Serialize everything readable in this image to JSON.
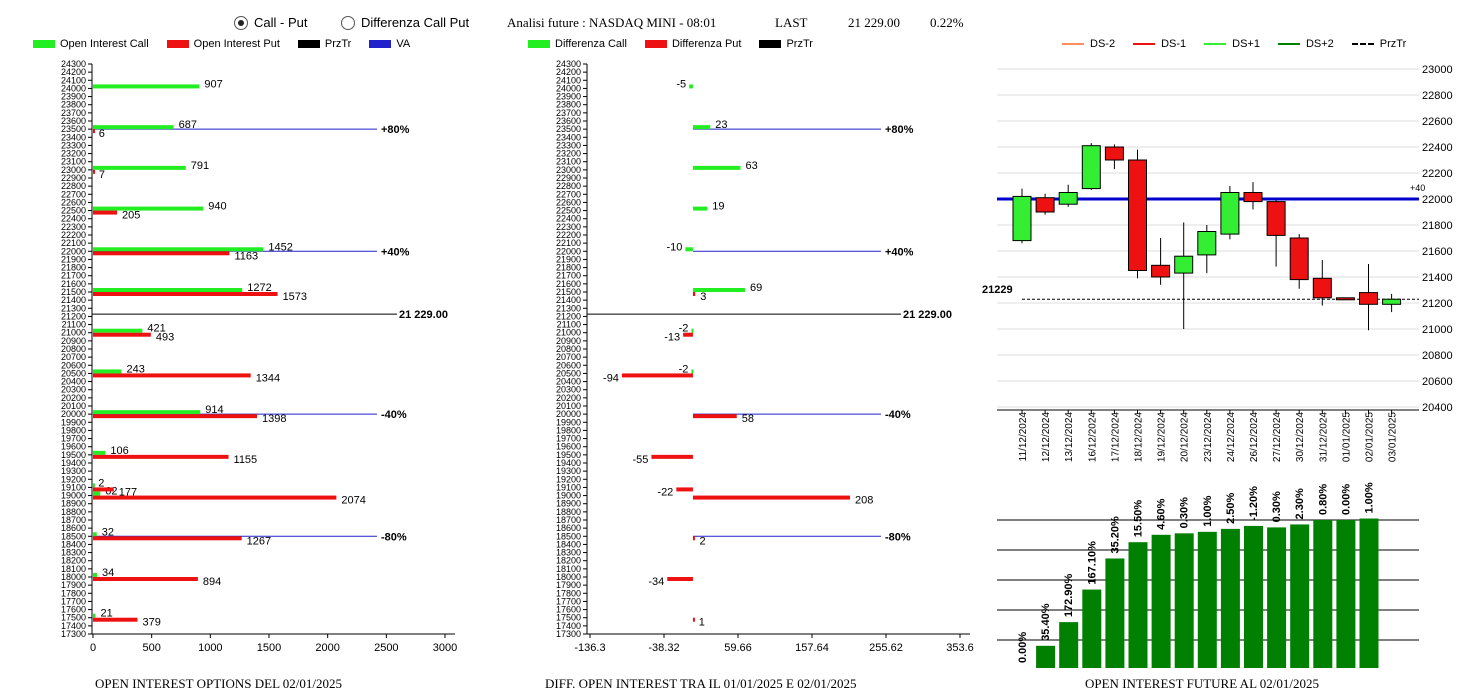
{
  "header": {
    "radio_call_put": "Call - Put",
    "radio_diff": "Differenza Call Put",
    "title": "Analisi future : NASDAQ MINI - 08:01",
    "last_label": "LAST",
    "last_value": "21 229.00",
    "last_change": "0.22%"
  },
  "legend1": {
    "call": "Open Interest Call",
    "put": "Open Interest Put",
    "prz": "PrzTr",
    "va": "VA"
  },
  "legend2": {
    "call": "Differenza Call",
    "put": "Differenza Put",
    "prz": "PrzTr"
  },
  "legend3": {
    "ds_2": "DS-2",
    "ds_1": "DS-1",
    "ds1": "DS+1",
    "ds2": "DS+2",
    "prz": "PrzTr"
  },
  "colors": {
    "call": "#22ee22",
    "put": "#ee1111",
    "va": "#2222cc",
    "candle_up": "#33ee33",
    "candle_down": "#ee1111",
    "bar": "#008000",
    "level": "#0000cc",
    "ds_2": "#ff8c5a",
    "ds_1": "#ee1111",
    "ds1": "#33ee33",
    "ds2": "#008000"
  },
  "footer": {
    "f1": "OPEN INTEREST OPTIONS DEL 02/01/2025",
    "f2": "DIFF. OPEN INTEREST TRA IL 01/01/2025 E 02/01/2025",
    "f3": "OPEN INTEREST FUTURE AL 02/01/2025"
  },
  "chart_data": [
    {
      "type": "bar",
      "orientation": "horizontal",
      "ylim": [
        17300,
        24300
      ],
      "xlim": [
        0,
        3000
      ],
      "xticks": [
        "0",
        "500",
        "1000",
        "1500",
        "2000",
        "2500",
        "3000"
      ],
      "strikes": [
        17500,
        18000,
        18500,
        19000,
        19100,
        19500,
        20000,
        20500,
        21000,
        21500,
        22000,
        22500,
        23000,
        23500,
        24000
      ],
      "series": [
        {
          "name": "Open Interest Call",
          "values": [
            21,
            34,
            32,
            62,
            2,
            106,
            914,
            243,
            421,
            1272,
            1452,
            940,
            791,
            687,
            907
          ]
        },
        {
          "name": "Open Interest Put",
          "values": [
            379,
            894,
            1267,
            2074,
            177,
            1155,
            1398,
            1344,
            493,
            1573,
            1163,
            205,
            7,
            6,
            null
          ]
        }
      ],
      "levels": [
        {
          "value": 23500,
          "label": "+80%"
        },
        {
          "value": 22000,
          "label": "+40%"
        },
        {
          "value": 20000,
          "label": "-40%"
        },
        {
          "value": 18500,
          "label": "-80%"
        }
      ],
      "last": {
        "value": 21229,
        "label": "21 229.00"
      }
    },
    {
      "type": "bar",
      "orientation": "horizontal",
      "ylim": [
        17300,
        24300
      ],
      "xlim": [
        -136.3,
        353.6
      ],
      "xticks": [
        "-136.3",
        "-38.32",
        "59.66",
        "157.64",
        "255.62",
        "353.6"
      ],
      "strikes": [
        17500,
        18000,
        18500,
        19000,
        19100,
        19500,
        20000,
        20500,
        21000,
        21500,
        22000,
        22500,
        23000,
        23500,
        24000
      ],
      "series": [
        {
          "name": "Differenza Call",
          "values": [
            null,
            null,
            null,
            null,
            null,
            null,
            null,
            -2,
            -2,
            69,
            -10,
            19,
            63,
            23,
            -5
          ]
        },
        {
          "name": "Differenza Put",
          "values": [
            1,
            -34,
            2,
            208,
            -22,
            -55,
            58,
            -94,
            -13,
            3,
            null,
            null,
            null,
            null,
            null
          ]
        }
      ],
      "levels": [
        {
          "value": 23500,
          "label": "+80%"
        },
        {
          "value": 22000,
          "label": "+40%"
        },
        {
          "value": 20000,
          "label": "-40%"
        },
        {
          "value": 18500,
          "label": "-80%"
        }
      ],
      "last": {
        "value": 21229,
        "label": "21 229.00"
      }
    },
    {
      "type": "candlestick",
      "ylim": [
        20400,
        23000
      ],
      "yticks": [
        "20400",
        "20600",
        "20800",
        "21000",
        "21200",
        "21400",
        "21600",
        "21800",
        "22000",
        "22200",
        "22400",
        "22600",
        "22800",
        "23000"
      ],
      "dates": [
        "11/12/2024",
        "12/12/2024",
        "13/12/2024",
        "16/12/2024",
        "17/12/2024",
        "18/12/2024",
        "19/12/2024",
        "20/12/2024",
        "23/12/2024",
        "24/12/2024",
        "26/12/2024",
        "27/12/2024",
        "30/12/2024",
        "31/12/2024",
        "01/01/2025",
        "02/01/2025",
        "03/01/2025"
      ],
      "ohlc": [
        [
          21680,
          22080,
          21660,
          22020
        ],
        [
          22010,
          22040,
          21880,
          21900
        ],
        [
          21960,
          22110,
          21940,
          22050
        ],
        [
          22080,
          22430,
          22070,
          22410
        ],
        [
          22400,
          22420,
          22230,
          22300
        ],
        [
          22300,
          22380,
          21390,
          21450
        ],
        [
          21490,
          21700,
          21340,
          21400
        ],
        [
          21430,
          21820,
          21000,
          21560
        ],
        [
          21570,
          21800,
          21430,
          21750
        ],
        [
          21730,
          22100,
          21690,
          22050
        ],
        [
          22050,
          22130,
          21920,
          21980
        ],
        [
          21980,
          21990,
          21480,
          21720
        ],
        [
          21700,
          21730,
          21310,
          21380
        ],
        [
          21390,
          21530,
          21180,
          21240
        ],
        [
          21240,
          21240,
          21230,
          21235
        ],
        [
          21280,
          21500,
          20990,
          21190
        ],
        [
          21190,
          21270,
          21130,
          21229
        ]
      ],
      "level": {
        "value": 22000,
        "label": "+40"
      },
      "last": {
        "value": 21229,
        "label": "21229"
      }
    },
    {
      "type": "bar",
      "categories": [
        "11/12/2024",
        "12/12/2024",
        "13/12/2024",
        "16/12/2024",
        "17/12/2024",
        "18/12/2024",
        "19/12/2024",
        "20/12/2024",
        "23/12/2024",
        "24/12/2024",
        "26/12/2024",
        "27/12/2024",
        "30/12/2024",
        "31/12/2024",
        "01/01/2025",
        "02/01/2025"
      ],
      "values": [
        0,
        0.15,
        0.31,
        0.53,
        0.74,
        0.85,
        0.9,
        0.91,
        0.92,
        0.94,
        0.96,
        0.95,
        0.97,
        1.0,
        1.0,
        1.01
      ],
      "labels": [
        "0.00%",
        "35.40%",
        "172.90%",
        "167.10%",
        "35.20%",
        "15.50%",
        "4.60%",
        "0.30%",
        "1.00%",
        "2.50%",
        "-1.20%",
        "0.30%",
        "2.30%",
        "0.80%",
        "0.00%",
        "1.00%"
      ]
    }
  ]
}
